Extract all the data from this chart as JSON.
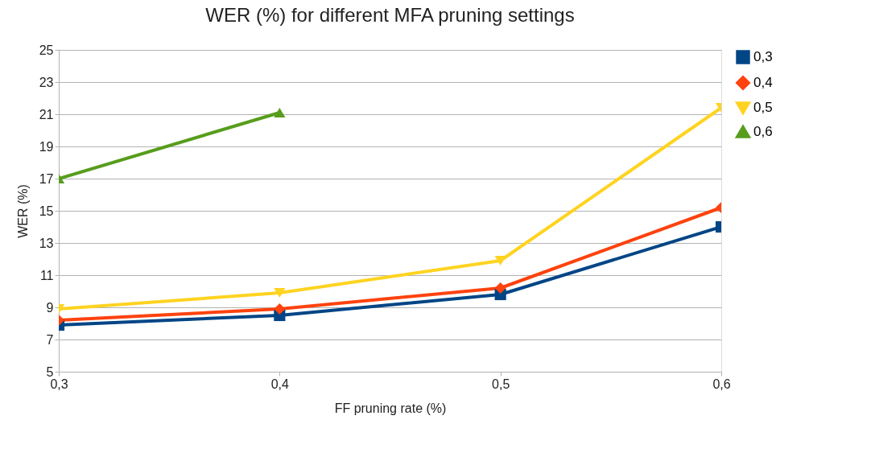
{
  "chart_data": {
    "type": "line",
    "title": "WER (%) for different MFA pruning settings",
    "xlabel": "FF pruning rate (%)",
    "ylabel": "WER (%)",
    "categories": [
      "0,3",
      "0,4",
      "0,5",
      "0,6"
    ],
    "series": [
      {
        "name": "0,3",
        "color": "#004586",
        "marker": "square",
        "values": [
          7.9,
          8.5,
          9.8,
          14.0
        ]
      },
      {
        "name": "0,4",
        "color": "#ff420e",
        "marker": "diamond",
        "values": [
          8.2,
          8.9,
          10.2,
          15.2
        ]
      },
      {
        "name": "0,5",
        "color": "#ffd320",
        "marker": "triangle-down",
        "values": [
          8.9,
          9.9,
          11.9,
          21.4
        ]
      },
      {
        "name": "0,6",
        "color": "#579d1c",
        "marker": "triangle",
        "values": [
          17.0,
          21.1,
          null,
          null
        ]
      }
    ],
    "ylim": [
      5,
      25
    ],
    "yticks": [
      5,
      7,
      9,
      11,
      13,
      15,
      17,
      19,
      21,
      23,
      25
    ],
    "grid": "y",
    "legend": "right",
    "line_style": "solid"
  }
}
